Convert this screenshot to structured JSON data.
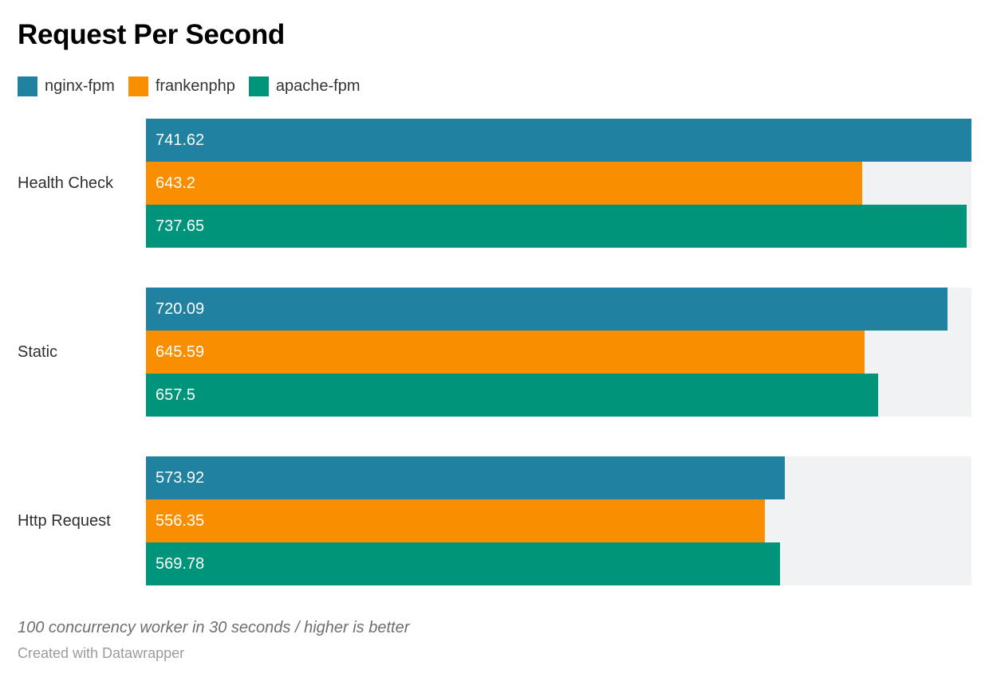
{
  "title": "Request Per Second",
  "legend": [
    {
      "label": "nginx-fpm",
      "color": "#2181a1"
    },
    {
      "label": "frankenphp",
      "color": "#f98e00"
    },
    {
      "label": "apache-fpm",
      "color": "#00957a"
    }
  ],
  "chart_data": {
    "type": "bar",
    "orientation": "horizontal",
    "title": "Request Per Second",
    "categories": [
      "Health Check",
      "Static",
      "Http Request"
    ],
    "series": [
      {
        "name": "nginx-fpm",
        "color": "#2181a1",
        "values": [
          741.62,
          720.09,
          573.92
        ]
      },
      {
        "name": "frankenphp",
        "color": "#f98e00",
        "values": [
          643.2,
          645.59,
          556.35
        ]
      },
      {
        "name": "apache-fpm",
        "color": "#00957a",
        "values": [
          737.65,
          657.5,
          569.78
        ]
      }
    ],
    "value_labels_shown": true,
    "xlim": [
      0,
      741.62
    ],
    "grid": false,
    "legend_position": "top",
    "track_color": "#f1f2f3",
    "bar_label_color": "#fcfefe"
  },
  "footer": {
    "note": "100 concurrency worker in 30 seconds / higher is better",
    "attribution": "Created with Datawrapper"
  }
}
